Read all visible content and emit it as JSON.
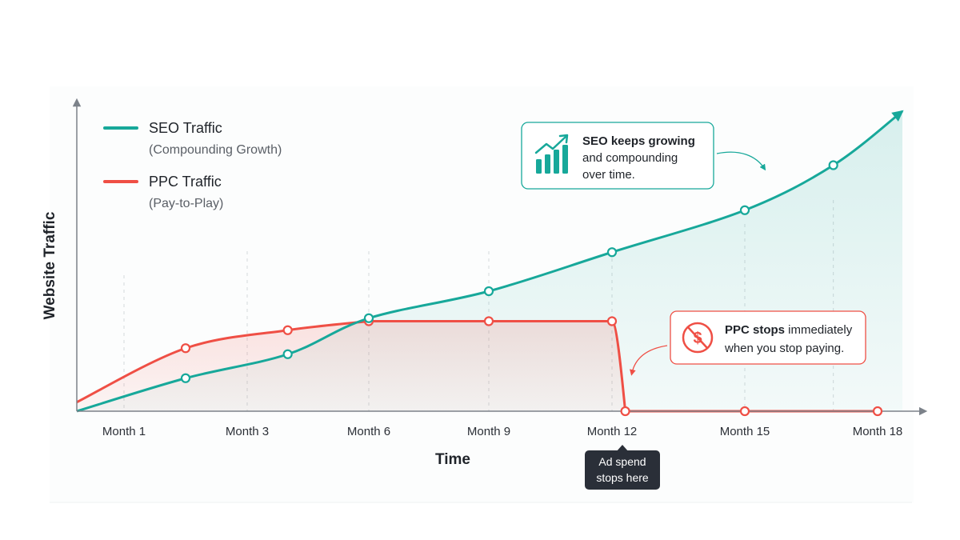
{
  "chart_data": {
    "type": "line",
    "xlabel": "Time",
    "ylabel": "Website Traffic",
    "x_ticks": [
      "Month 1",
      "Month 3",
      "Month 6",
      "Month 9",
      "Month 12",
      "Month 15",
      "Month 18"
    ],
    "ylim": [
      0,
      100
    ],
    "series": [
      {
        "name": "SEO Traffic",
        "subtitle": "(Compounding Growth)",
        "color": "#17a89a",
        "points": [
          {
            "month": 2,
            "value": 11
          },
          {
            "month": 4,
            "value": 19
          },
          {
            "month": 6,
            "value": 31
          },
          {
            "month": 9,
            "value": 40
          },
          {
            "month": 12,
            "value": 53
          },
          {
            "month": 15,
            "value": 67
          },
          {
            "month": 17,
            "value": 82
          }
        ],
        "end_month": 19,
        "end_value": 100
      },
      {
        "name": "PPC Traffic",
        "subtitle": "(Pay-to-Play)",
        "color": "#ef4f45",
        "points": [
          {
            "month": 2,
            "value": 21
          },
          {
            "month": 4,
            "value": 27
          },
          {
            "month": 6,
            "value": 30
          },
          {
            "month": 9,
            "value": 30
          },
          {
            "month": 12,
            "value": 30
          },
          {
            "month": 12.3,
            "value": 0
          },
          {
            "month": 15,
            "value": 0
          },
          {
            "month": 18,
            "value": 0
          }
        ]
      }
    ],
    "legend_position": "top-left",
    "grid": "vertical-dashed",
    "annotations": {
      "seo_callout": {
        "bold": "SEO keeps growing",
        "line2": "and compounding",
        "line3": "over time."
      },
      "ppc_callout": {
        "bold": "PPC stops",
        "rest": " immediately",
        "line2": "when you stop paying."
      },
      "ad_tag": {
        "line1": "Ad spend",
        "line2": "stops here"
      }
    }
  },
  "icons": {
    "seo_callout_icon": "growth-chart-icon",
    "ppc_callout_icon": "no-dollar-icon"
  }
}
